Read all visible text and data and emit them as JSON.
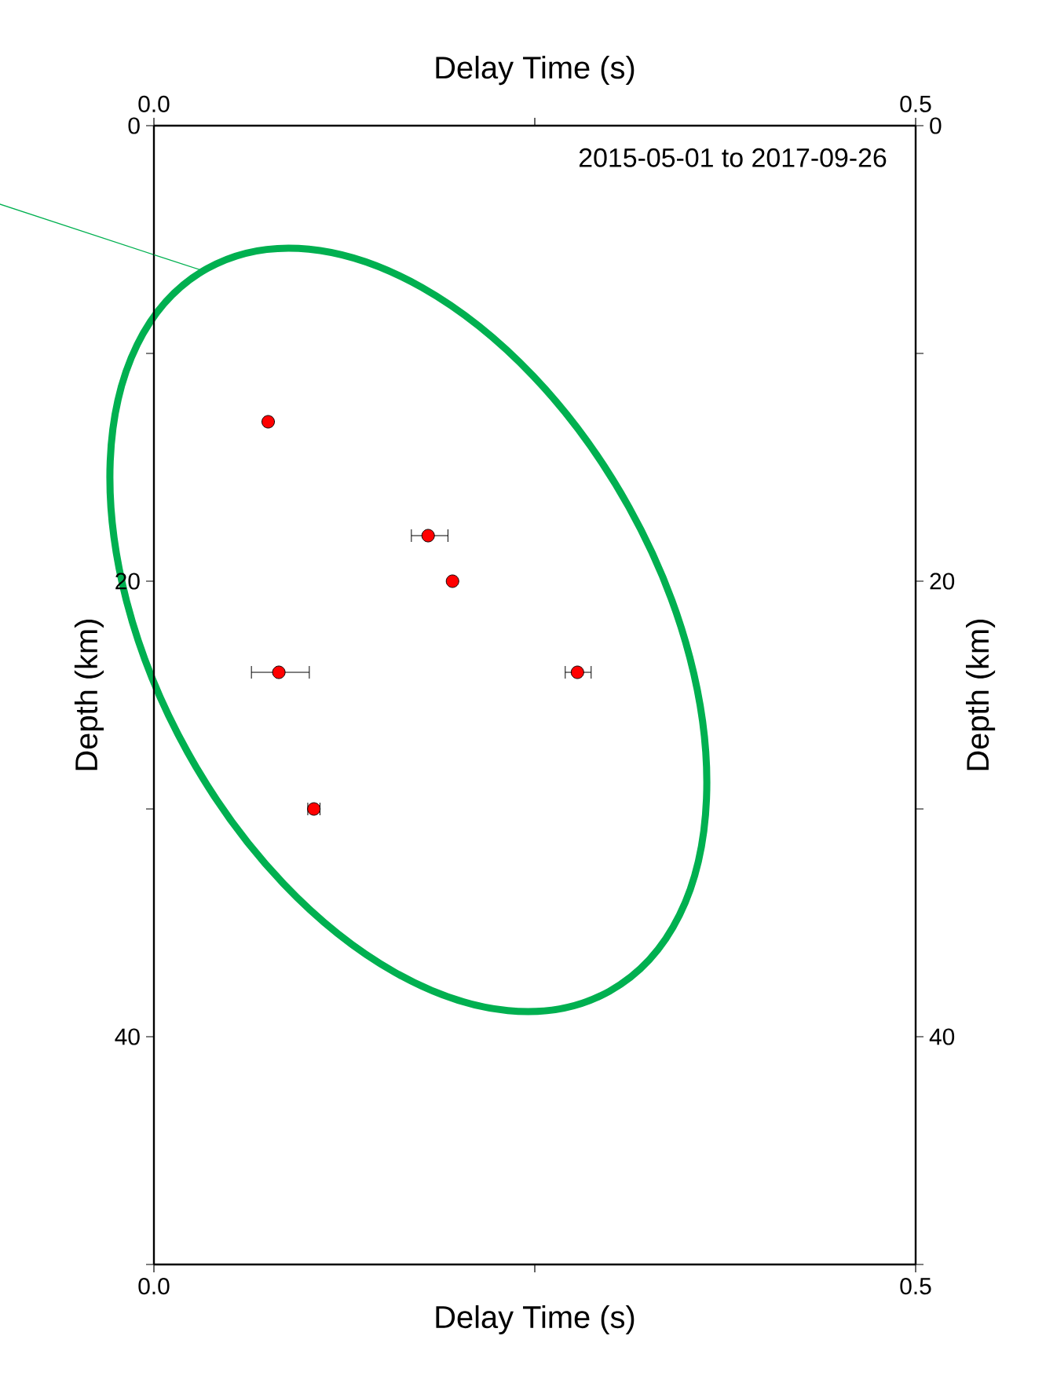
{
  "chart_data": {
    "type": "scatter",
    "xlabel": "Delay Time (s)",
    "x2label": "Delay Time (s)",
    "ylabel": "Depth (km)",
    "y2label": "Depth (km)",
    "annotations": [
      "2015-05-01 to 2017-09-26"
    ],
    "xlim": [
      0,
      0.5
    ],
    "xticks": [
      {
        "value": 0,
        "label": "0.0"
      },
      {
        "value": 0.25,
        "label": null
      },
      {
        "value": 0.5,
        "label": "0.5"
      }
    ],
    "x2lim": [
      0,
      0.5
    ],
    "x2ticks": [
      {
        "value": 0,
        "label": "0.0"
      },
      {
        "value": 0.25,
        "label": null
      },
      {
        "value": 0.5,
        "label": "0.5"
      }
    ],
    "ylim": [
      50,
      0
    ],
    "yticks": [
      0,
      {
        "value": 10,
        "label": null
      },
      20,
      {
        "value": 30,
        "label": null
      },
      40,
      {
        "value": 50,
        "label": null
      }
    ],
    "y2lim": [
      50,
      0
    ],
    "y2ticks": [
      0,
      {
        "value": 10,
        "label": null
      },
      20,
      {
        "value": 30,
        "label": null
      },
      40,
      {
        "value": 50,
        "label": null
      }
    ],
    "grid": false,
    "series": [
      {
        "type": "line",
        "color": "#00b050",
        "marker": "none",
        "x": [
          0,
          0.031
        ],
        "values": [
          5.67,
          6.34
        ]
      },
      {
        "color": "#ff0000",
        "marker": "circle",
        "x": [
          0.075,
          0.18,
          0.196,
          0.082,
          0.278,
          0.105
        ],
        "values": [
          13,
          18,
          20,
          24,
          24,
          30
        ],
        "xerrors": [
          null,
          [
            0.169,
            0.193
          ],
          null,
          [
            0.064,
            0.102
          ],
          [
            0.27,
            0.287
          ],
          [
            0.101,
            0.109
          ]
        ]
      }
    ]
  }
}
